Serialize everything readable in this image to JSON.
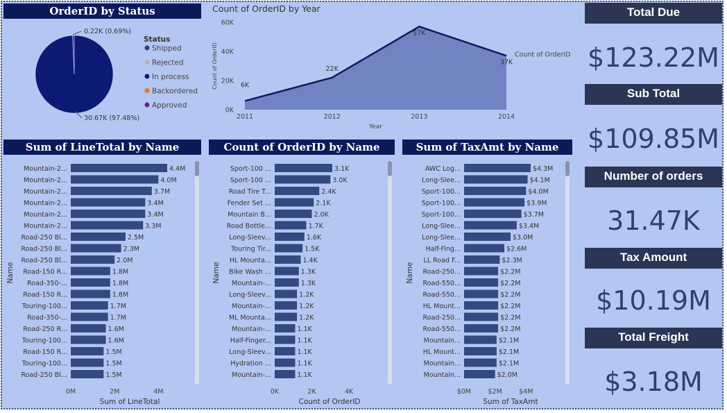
{
  "pie": {
    "title": "OrderID by Status",
    "legend_title": "Status",
    "legend": [
      {
        "label": "Shipped",
        "color": "#2e3e72"
      },
      {
        "label": "Rejected",
        "color": "#b3b3b3"
      },
      {
        "label": "In process",
        "color": "#0d1a73"
      },
      {
        "label": "Backordered",
        "color": "#e8762c"
      },
      {
        "label": "Approved",
        "color": "#7b1c8c"
      }
    ],
    "small_label": "0.22K (0.69%)",
    "big_label": "30.67K (97.48%)"
  },
  "kpis": [
    {
      "label": "Total Due",
      "value": "$123.22M"
    },
    {
      "label": "Sub Total",
      "value": "$109.85M"
    },
    {
      "label": "Number of orders",
      "value": "31.47K"
    },
    {
      "label": "Tax Amount",
      "value": "$10.19M"
    },
    {
      "label": "Total Freight",
      "value": "$3.18M"
    }
  ],
  "chart_data": [
    {
      "type": "pie",
      "title": "OrderID by Status",
      "legend_title": "Status",
      "slices": [
        {
          "label": "In process",
          "value": 30.67,
          "percent": 97.48,
          "display": "30.67K (97.48%)"
        },
        {
          "label": "Approved",
          "value": 0.22,
          "percent": 0.69,
          "display": "0.22K (0.69%)"
        }
      ],
      "unit": "K"
    },
    {
      "type": "area",
      "title": "Count of OrderID by Year",
      "xlabel": "Year",
      "ylabel": "Count of OrderID",
      "series_label": "Count of OrderID",
      "x": [
        2011,
        2012,
        2013,
        2014
      ],
      "values": [
        6,
        22,
        57,
        37
      ],
      "point_labels": [
        "6K",
        "22K",
        "57K",
        "37K"
      ],
      "ylim": [
        0,
        60
      ],
      "yticks": [
        "0K",
        "20K",
        "40K",
        "60K"
      ]
    },
    {
      "type": "bar",
      "orientation": "horizontal",
      "title": "Sum of LineTotal by Name",
      "xlabel": "Sum of LineTotal",
      "ylabel": "Name",
      "xlim": [
        0,
        5.2
      ],
      "xticks": [
        "0M",
        "2M",
        "4M"
      ],
      "categories": [
        "Mountain-2...",
        "Mountain-2...",
        "Mountain-2...",
        "Mountain-2...",
        "Mountain-2...",
        "Mountain-2...",
        "Road-250 Bl...",
        "Road-250 Bl...",
        "Road-250 Bl...",
        "Road-150 R...",
        "Road-350-...",
        "Road-150 R...",
        "Touring-100...",
        "Road-350-...",
        "Road-250 R...",
        "Touring-100...",
        "Road-150 R...",
        "Touring-100...",
        "Road-250 Bl..."
      ],
      "values": [
        4.4,
        4.0,
        3.7,
        3.4,
        3.4,
        3.3,
        2.5,
        2.3,
        2.0,
        1.8,
        1.8,
        1.8,
        1.7,
        1.7,
        1.6,
        1.6,
        1.5,
        1.5,
        1.5
      ],
      "labels": [
        "4.4M",
        "4.0M",
        "3.7M",
        "3.4M",
        "3.4M",
        "3.3M",
        "2.5M",
        "2.3M",
        "2.0M",
        "1.8M",
        "1.8M",
        "1.8M",
        "1.7M",
        "1.7M",
        "1.6M",
        "1.6M",
        "1.5M",
        "1.5M",
        "1.5M"
      ]
    },
    {
      "type": "bar",
      "orientation": "horizontal",
      "title": "Count of OrderID by Name",
      "xlabel": "Count of OrderID",
      "ylabel": "Name",
      "xlim": [
        0,
        5.0
      ],
      "xticks": [
        "0K",
        "2K",
        "4K"
      ],
      "categories": [
        "Sport-100 ...",
        "Sport-100 ...",
        "Road Tire T...",
        "Fender Set ...",
        "Mountain B...",
        "Road Bottle...",
        "Long-Sleev...",
        "Touring Tir...",
        "HL Mounta...",
        "Bike Wash ...",
        "Mountain-...",
        "Long-Sleev...",
        "Mountain-...",
        "ML Mounta...",
        "Mountain-...",
        "Half-Finger...",
        "Long-Sleev...",
        "Hydration ...",
        "Mountain-..."
      ],
      "values": [
        3.1,
        3.0,
        2.4,
        2.1,
        2.0,
        1.7,
        1.6,
        1.5,
        1.4,
        1.3,
        1.3,
        1.2,
        1.2,
        1.2,
        1.1,
        1.1,
        1.1,
        1.1,
        1.1
      ],
      "labels": [
        "3.1K",
        "3.0K",
        "2.4K",
        "2.1K",
        "2.0K",
        "1.7K",
        "1.6K",
        "1.5K",
        "1.4K",
        "1.3K",
        "1.3K",
        "1.2K",
        "1.2K",
        "1.2K",
        "1.1K",
        "1.1K",
        "1.1K",
        "1.1K",
        "1.1K"
      ]
    },
    {
      "type": "bar",
      "orientation": "horizontal",
      "title": "Sum of TaxAmt by Name",
      "xlabel": "Sum of TaxAmt",
      "ylabel": "Name",
      "xlim": [
        0,
        4.6
      ],
      "xticks": [
        "$0M",
        "$2M",
        "$4M"
      ],
      "categories": [
        "AWC Log...",
        "Long-Slee...",
        "Sport-100...",
        "Sport-100...",
        "Sport-100...",
        "Long-Slee...",
        "Long-Slee...",
        "Half-Fing...",
        "LL Road F...",
        "Road-250...",
        "Road-550...",
        "Road-550...",
        "HL Mount...",
        "Road-250...",
        "Road-550...",
        "Mountain...",
        "HL Mount...",
        "Mountain...",
        "Mountain..."
      ],
      "values": [
        4.3,
        4.1,
        4.0,
        3.9,
        3.7,
        3.4,
        3.0,
        2.6,
        2.3,
        2.2,
        2.2,
        2.2,
        2.2,
        2.2,
        2.2,
        2.1,
        2.1,
        2.1,
        2.0
      ],
      "labels": [
        "$4.3M",
        "$4.1M",
        "$4.0M",
        "$3.9M",
        "$3.7M",
        "$3.4M",
        "$3.0M",
        "$2.6M",
        "$2.3M",
        "$2.2M",
        "$2.2M",
        "$2.2M",
        "$2.2M",
        "$2.2M",
        "$2.2M",
        "$2.1M",
        "$2.1M",
        "$2.1M",
        "$2.0M"
      ]
    }
  ]
}
